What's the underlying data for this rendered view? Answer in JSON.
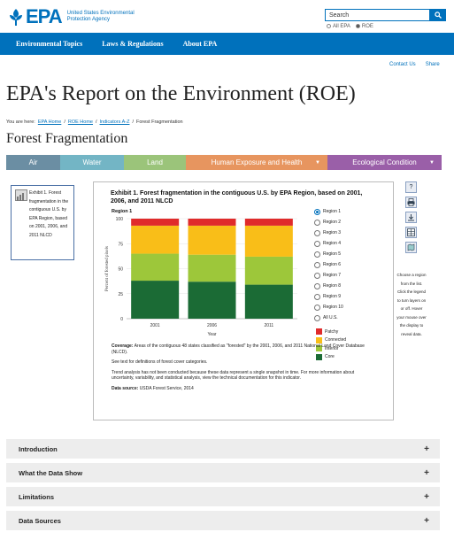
{
  "header": {
    "logo_text": "EPA",
    "logo_sub": "United States Environmental Protection Agency",
    "search_placeholder": "Search",
    "scope_all": "All EPA",
    "scope_roe": "ROE"
  },
  "nav": [
    "Environmental Topics",
    "Laws & Regulations",
    "About EPA"
  ],
  "util": {
    "contact": "Contact Us",
    "share": "Share"
  },
  "page_title": "EPA's Report on the Environment (ROE)",
  "breadcrumb": {
    "lead": "You are here:",
    "items": [
      "EPA Home",
      "ROE Home",
      "Indicators A-Z"
    ],
    "current": "Forest Fragmentation"
  },
  "subtitle": "Forest Fragmentation",
  "tabs": [
    {
      "label": "Air",
      "color": "#6b8ea3"
    },
    {
      "label": "Water",
      "color": "#73b5c5"
    },
    {
      "label": "Land",
      "color": "#9bc47a"
    },
    {
      "label": "Human Exposure and Health",
      "color": "#e7955f"
    },
    {
      "label": "Ecological Condition",
      "color": "#9a5fa8"
    }
  ],
  "thumb_text": "Exhibit 1. Forest fragmentation in the contiguous U.S. by EPA Region, based on 2001, 2006, and 2011 NLCD",
  "chart_data": {
    "type": "bar",
    "stacked": true,
    "title": "Exhibit 1. Forest fragmentation in the contiguous U.S. by EPA Region, based on 2001, 2006, and 2011 NLCD",
    "subtitle": "Region 1",
    "xlabel": "Year",
    "ylabel": "Percent of forested pixels",
    "ylim": [
      0,
      100
    ],
    "yticks": [
      0,
      25,
      50,
      75,
      100
    ],
    "categories": [
      "2001",
      "2006",
      "2011"
    ],
    "series": [
      {
        "name": "Core",
        "color": "#1b6b35",
        "values": [
          38,
          37,
          34
        ]
      },
      {
        "name": "Interior",
        "color": "#9dc73a",
        "values": [
          27,
          27,
          28
        ]
      },
      {
        "name": "Connected",
        "color": "#f9be18",
        "values": [
          28,
          29,
          31
        ]
      },
      {
        "name": "Patchy",
        "color": "#e02b2b",
        "values": [
          7,
          7,
          7
        ]
      }
    ],
    "legend_order": [
      "Patchy",
      "Connected",
      "Interior",
      "Core"
    ]
  },
  "regions": [
    "Region 1",
    "Region 2",
    "Region 3",
    "Region 4",
    "Region 5",
    "Region 6",
    "Region 7",
    "Region 8",
    "Region 9",
    "Region 10",
    "All U.S."
  ],
  "notes": {
    "coverage_label": "Coverage:",
    "coverage": "Areas of the contiguous 48 states classified as \"forested\" by the 2001, 2006, and 2011 National Land Cover Database (NLCD).",
    "text1": "See text for definitions of forest cover categories.",
    "text2": "Trend analysis has not been conducted because these data represent a single snapshot in time. For more information about uncertainty, variability, and statistical analysis, view the technical documentation for this indicator.",
    "source_label": "Data source:",
    "source": "USDA Forest Service, 2014"
  },
  "side_note": "Choose a region from the list. Click the legend to turn layers on or off. Hover your mouse over the display to reveal data.",
  "accordion": [
    "Introduction",
    "What the Data Show",
    "Limitations",
    "Data Sources"
  ]
}
